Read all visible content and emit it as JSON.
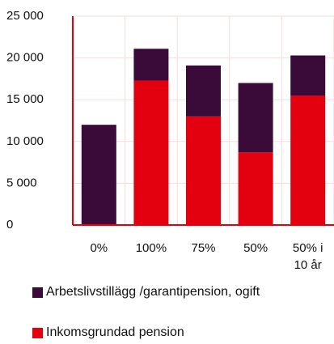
{
  "chart_data": {
    "type": "stacked_bar",
    "categories": [
      "0%",
      "100%",
      "75%",
      "50%",
      "50% i 10 år"
    ],
    "series": [
      {
        "name": "Inkomsgrundad pension",
        "color": "#e3000f",
        "values": [
          100,
          17300,
          13000,
          8700,
          15500
        ]
      },
      {
        "name": "Arbetslivstillägg /garantipension, ogift",
        "color": "#3a0a38",
        "values": [
          11900,
          3800,
          6100,
          8300,
          4800
        ]
      }
    ],
    "ylim": [
      0,
      25000
    ],
    "yticks": [
      0,
      {
        "value": 5000,
        "label": "5 000"
      },
      {
        "value": 10000,
        "label": "10 000"
      },
      {
        "value": 15000,
        "label": "15 000"
      },
      {
        "value": 20000,
        "label": "20 000"
      },
      {
        "value": 25000,
        "label": "25 000"
      }
    ],
    "grid": true
  }
}
